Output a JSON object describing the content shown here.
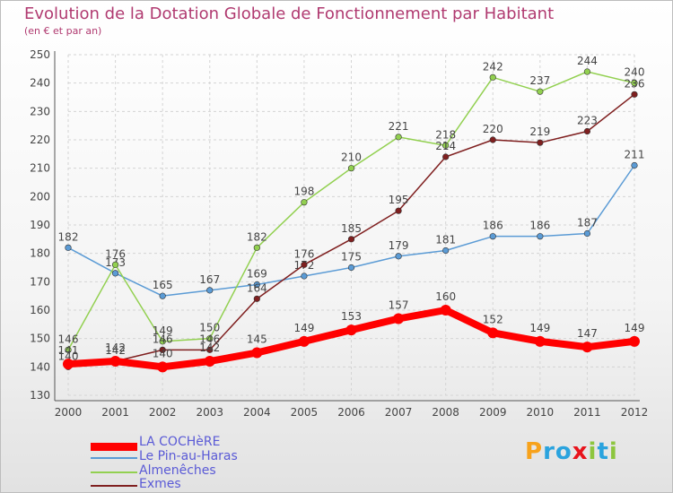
{
  "header": {
    "title": "Evolution de la Dotation Globale de Fonctionnement par Habitant",
    "subtitle": "(en € et par an)"
  },
  "chart_data": {
    "type": "line",
    "title": "Evolution de la Dotation Globale de Fonctionnement par Habitant",
    "subtitle": "(en € et par an)",
    "xlabel": "",
    "ylabel": "",
    "categories": [
      "2000",
      "2001",
      "2002",
      "2003",
      "2004",
      "2005",
      "2006",
      "2007",
      "2008",
      "2009",
      "2010",
      "2011",
      "2012"
    ],
    "ylim": [
      130,
      250
    ],
    "yticks": [
      "130",
      "140",
      "150",
      "160",
      "170",
      "180",
      "190",
      "200",
      "210",
      "220",
      "230",
      "240",
      "250"
    ],
    "grid": true,
    "legend_position": "bottom-left",
    "series": [
      {
        "name": "LA COCHèRE",
        "color": "#ff0000",
        "emphasis": true,
        "values": [
          141,
          142,
          140,
          142,
          145,
          149,
          153,
          157,
          160,
          152,
          149,
          147,
          149
        ]
      },
      {
        "name": "Le Pin-au-Haras",
        "color": "#5b9bd5",
        "values": [
          182,
          173,
          165,
          167,
          169,
          172,
          175,
          179,
          181,
          186,
          186,
          187,
          211
        ]
      },
      {
        "name": "Almenêches",
        "color": "#92d050",
        "values": [
          146,
          176,
          149,
          150,
          182,
          198,
          210,
          221,
          218,
          242,
          237,
          244,
          240
        ]
      },
      {
        "name": "Exmes",
        "color": "#7f1f1f",
        "values": [
          140,
          142,
          146,
          146,
          164,
          176,
          185,
          195,
          214,
          220,
          219,
          223,
          236
        ]
      }
    ]
  },
  "legend": {
    "items": [
      {
        "label": "LA COCHèRE",
        "color": "#ff0000"
      },
      {
        "label": "Le Pin-au-Haras",
        "color": "#5b9bd5"
      },
      {
        "label": "Almenêches",
        "color": "#92d050"
      },
      {
        "label": "Exmes",
        "color": "#7f1f1f"
      }
    ]
  },
  "brand": {
    "name": "Proxiti",
    "letters": [
      {
        "ch": "P",
        "color": "#f7a21b"
      },
      {
        "ch": "r",
        "color": "#2aa3de"
      },
      {
        "ch": "o",
        "color": "#2aa3de"
      },
      {
        "ch": "x",
        "color": "#e8141c"
      },
      {
        "ch": "i",
        "color": "#8dc63f"
      },
      {
        "ch": "t",
        "color": "#2aa3de"
      },
      {
        "ch": "i",
        "color": "#8dc63f"
      }
    ]
  }
}
